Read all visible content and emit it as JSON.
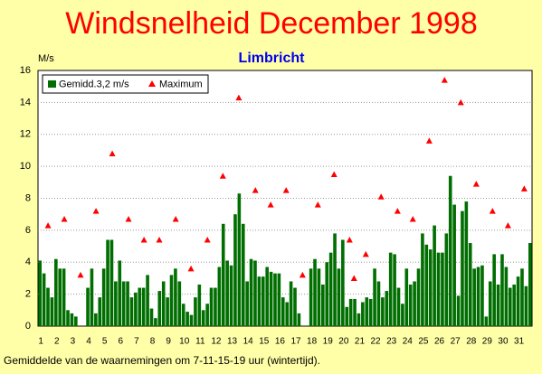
{
  "chart_data": {
    "type": "bar",
    "title": "Windsnelheid December 1998",
    "subtitle": "Limbricht",
    "y_label": "M/s",
    "note": "Gemiddelde van de waarnemingen om 7-11-15-19 uur (wintertijd).",
    "categories": [
      "1",
      null,
      null,
      null,
      "2",
      null,
      null,
      null,
      "3",
      null,
      null,
      null,
      "4",
      null,
      null,
      null,
      "5",
      null,
      null,
      null,
      "6",
      null,
      null,
      null,
      "7",
      null,
      null,
      null,
      "8",
      null,
      null,
      null,
      "9",
      null,
      null,
      null,
      "10",
      null,
      null,
      null,
      "11",
      null,
      null,
      null,
      "12",
      null,
      null,
      null,
      "13",
      null,
      null,
      null,
      "14",
      null,
      null,
      null,
      "15",
      null,
      null,
      null,
      "16",
      null,
      null,
      null,
      "17",
      null,
      null,
      null,
      "18",
      null,
      null,
      null,
      "19",
      null,
      null,
      null,
      "20",
      null,
      null,
      null,
      "21",
      null,
      null,
      null,
      "22",
      null,
      null,
      null,
      "23",
      null,
      null,
      null,
      "24",
      null,
      null,
      null,
      "25",
      null,
      null,
      null,
      "26",
      null,
      null,
      null,
      "27",
      null,
      null,
      null,
      "28",
      null,
      null,
      null,
      "29",
      null,
      null,
      null,
      "30",
      null,
      null,
      null,
      "31",
      null,
      null,
      null
    ],
    "series": [
      {
        "name": "Gemidd.3,2 m/s",
        "color": "#006e00",
        "values": [
          4.1,
          3.3,
          2.4,
          1.8,
          4.2,
          3.6,
          3.6,
          1.0,
          0.8,
          0.6,
          0,
          0,
          2.4,
          3.6,
          0.8,
          1.8,
          3.6,
          5.4,
          5.4,
          2.8,
          4.1,
          2.8,
          2.8,
          1.8,
          2.1,
          2.4,
          2.4,
          3.2,
          1.1,
          0.5,
          2.2,
          2.8,
          1.8,
          3.2,
          3.6,
          2.8,
          1.4,
          0.9,
          0.7,
          1.8,
          2.6,
          1.0,
          1.4,
          2.4,
          2.4,
          3.7,
          6.4,
          4.1,
          3.8,
          7.0,
          8.3,
          6.4,
          2.8,
          4.2,
          4.1,
          3.1,
          3.1,
          3.7,
          3.4,
          3.3,
          3.3,
          1.8,
          1.5,
          2.8,
          2.4,
          0.8,
          0,
          0,
          3.6,
          4.2,
          3.6,
          2.6,
          4.0,
          4.6,
          5.8,
          3.6,
          5.4,
          1.2,
          1.7,
          1.7,
          0.8,
          1.5,
          1.8,
          1.7,
          3.6,
          2.8,
          1.8,
          2.2,
          4.6,
          4.5,
          2.4,
          1.4,
          3.6,
          2.6,
          2.8,
          3.6,
          5.8,
          5.1,
          4.8,
          6.3,
          4.6,
          4.6,
          5.8,
          9.4,
          7.6,
          1.9,
          7.2,
          7.8,
          5.2,
          3.6,
          3.7,
          3.8,
          0.6,
          2.8,
          4.5,
          2.6,
          4.5,
          3.7,
          2.4,
          2.6,
          3.1,
          3.6,
          2.5,
          5.2
        ]
      },
      {
        "name": "Maximum",
        "type": "scatter",
        "color": "#ff0000",
        "x": [
          1.63,
          2.65,
          3.67,
          4.64,
          5.66,
          6.68,
          7.65,
          8.61,
          9.64,
          10.6,
          11.63,
          12.6,
          13.6,
          14.64,
          15.6,
          16.57,
          17.6,
          18.56,
          19.58,
          20.55,
          20.83,
          21.57,
          22.53,
          23.56,
          24.52,
          25.55,
          26.51,
          27.53,
          28.5,
          29.52,
          30.49,
          31.51
        ],
        "values": [
          6.3,
          6.7,
          3.2,
          7.2,
          10.8,
          6.7,
          5.4,
          5.4,
          6.7,
          3.6,
          5.4,
          9.4,
          14.3,
          8.5,
          7.6,
          8.5,
          3.2,
          7.6,
          9.5,
          5.4,
          3.0,
          4.5,
          8.1,
          7.2,
          6.7,
          11.6,
          15.4,
          14.0,
          8.9,
          7.2,
          6.3,
          8.6
        ]
      }
    ],
    "xlim": [
      1,
      32
    ],
    "ylim": [
      0,
      16
    ],
    "yticks": [
      0,
      2,
      4,
      6,
      8,
      10,
      12,
      14,
      16
    ],
    "grid": true,
    "legend": "top-left"
  }
}
